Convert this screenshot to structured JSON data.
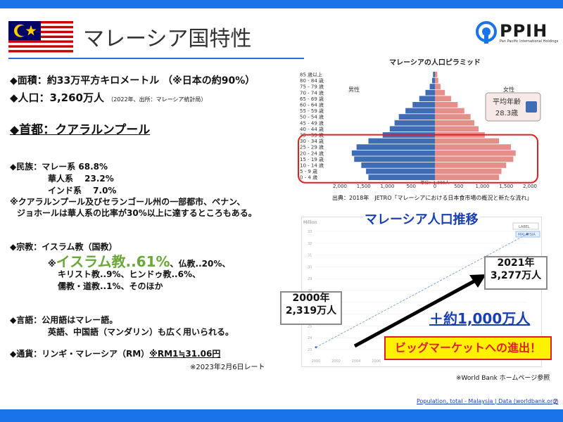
{
  "header": {
    "title": "マレーシア国特性",
    "logo_name": "PPIH",
    "logo_sub": "Pan Pacific International Holdings"
  },
  "facts": {
    "area": "◆面積：約33万平方キロメートル （※日本の約90%）",
    "population_label": "◆人口：3,260万人",
    "population_note": "（2022年、出所：マレーシア統計局）",
    "capital": "◆首都：クアラルンプール",
    "ethnic_1": "◆民族：マレー系 68.8%",
    "ethnic_2": "華人系　 23.2%",
    "ethnic_3": "インド系　 7.0%",
    "ethnic_note_1": "※クアラルンプール及びセランゴール州の一部都市、ペナン、",
    "ethnic_note_2": "ジョホールは華人系の比率が30%以上に達するところもある。",
    "religion_1": "◆宗教：イスラム教（国教）",
    "religion_prefix": "※",
    "religion_highlight": "イスラム教..61%",
    "religion_rest": "、仏教..20%、",
    "religion_2": "キリスト教..9%、ヒンドゥ教..6%、",
    "religion_3": "儒教・道教..1%、そのほか",
    "language_1": "◆言語：公用語はマレー語。",
    "language_2": "英語、中国語（マンダリン）も広く用いられる。",
    "currency": "◆通貨：リンギ・マレーシア（RM）",
    "currency_rate": "※RM1≒31.06円",
    "rate_date": "※2023年2月6日レート"
  },
  "pyramid": {
    "title": "マレーシアの人口ピラミッド",
    "male_label": "男性",
    "female_label": "女性",
    "avg_age_label": "平均年齢",
    "avg_age_value": "28.3歳",
    "unit": "単位：1,000人",
    "source": "出典：2018年　JETRO「マレーシアにおける日本食市場の概況と新たな流れ」",
    "age_groups": [
      "85 歳以上",
      "80 - 84 歳",
      "75 - 79 歳",
      "70 - 74 歳",
      "65 - 69 歳",
      "60 - 64 歳",
      "55 - 59 歳",
      "50 - 54 歳",
      "45 - 49 歳",
      "40 - 44 歳",
      "35 - 39 歳",
      "30 - 34 歳",
      "25 - 29 歳",
      "20 - 24 歳",
      "15 - 19 歳",
      "10 - 14 歳",
      "5 - 9 歳",
      "0 - 4 歳"
    ],
    "male": [
      40,
      60,
      110,
      200,
      330,
      470,
      620,
      760,
      850,
      950,
      1100,
      1400,
      1650,
      1750,
      1700,
      1550,
      1450,
      1400
    ],
    "female": [
      50,
      70,
      120,
      210,
      340,
      480,
      620,
      750,
      830,
      920,
      1050,
      1350,
      1600,
      1700,
      1650,
      1500,
      1400,
      1350
    ],
    "x_ticks": [
      "2,000",
      "1,500",
      "1,000",
      "500",
      "0",
      "500",
      "1,000",
      "1,500",
      "2,000"
    ]
  },
  "trend": {
    "title": "マレーシア人口推移",
    "y_unit": "Million",
    "legend": "LABEL",
    "series_tag": "MALAYSIA",
    "y_ticks": [
      "33",
      "32",
      "31",
      "30",
      "29",
      "28",
      "27",
      "26",
      "25",
      "24",
      "23"
    ],
    "x_ticks": [
      "2000",
      "2002",
      "2004",
      "2006"
    ],
    "callout_2000": "2000年\n2,319万人",
    "callout_2021": "2021年\n3,277万人",
    "increase": "＋約1,000万人",
    "banner": "ビッグマーケットへの進出！"
  },
  "chart_data": {
    "type": "line",
    "x": [
      2000,
      2021
    ],
    "series": [
      {
        "name": "MALAYSIA",
        "values": [
          23.19,
          32.77
        ]
      }
    ],
    "ylabel": "Million",
    "ylim": [
      23,
      33
    ]
  },
  "footer": {
    "note": "※World Bank ホームページ参照",
    "link": "Population, total - Malaysia | Data (worldbank.org)",
    "page": "2"
  },
  "colors": {
    "male": "#3f6cb5",
    "female": "#e58f8a",
    "accent": "#1a73e8",
    "highlight": "#e02020"
  }
}
